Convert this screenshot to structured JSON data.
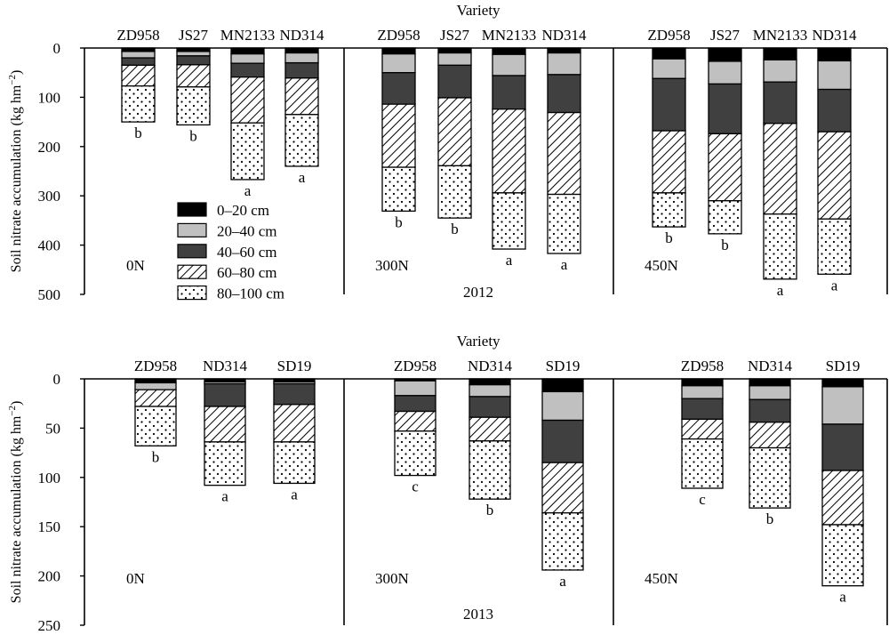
{
  "ylabel": "Soil nitrate accumulation (kg hm",
  "ylabel_sup": "−2",
  "ylabel_close": ")",
  "layers": [
    {
      "name": "0–20 cm",
      "color": "#000000",
      "fill": "solid"
    },
    {
      "name": "20–40 cm",
      "color": "#c0c0c0",
      "fill": "solid"
    },
    {
      "name": "40–60 cm",
      "color": "#404040",
      "fill": "solid"
    },
    {
      "name": "60–80 cm",
      "color": "#ffffff",
      "fill": "hatch"
    },
    {
      "name": "80–100 cm",
      "color": "#ffffff",
      "fill": "dots"
    }
  ],
  "chart_data": [
    {
      "type": "bar",
      "stacked": true,
      "orientation": "downward",
      "xlabel": "Variety",
      "year_label": "2012",
      "ylim": [
        0,
        500
      ],
      "yticks": [
        0,
        100,
        200,
        300,
        400,
        500
      ],
      "panels": [
        {
          "treatment": "0N",
          "categories": [
            "ZD958",
            "JS27",
            "MN2133",
            "ND314"
          ],
          "letters": [
            "b",
            "b",
            "a",
            "a"
          ],
          "bars": [
            [
              7,
              13,
              15,
              42,
              73
            ],
            [
              7,
              9,
              18,
              45,
              77
            ],
            [
              12,
              19,
              28,
              93,
              115
            ],
            [
              10,
              20,
              31,
              74,
              105
            ]
          ]
        },
        {
          "treatment": "300N",
          "categories": [
            "ZD958",
            "JS27",
            "MN2133",
            "ND314"
          ],
          "letters": [
            "b",
            "b",
            "a",
            "a"
          ],
          "bars": [
            [
              12,
              38,
              64,
              128,
              89
            ],
            [
              10,
              25,
              66,
              138,
              106
            ],
            [
              13,
              43,
              68,
              170,
              114
            ],
            [
              10,
              44,
              77,
              166,
              120
            ]
          ]
        },
        {
          "treatment": "450N",
          "categories": [
            "ZD958",
            "JS27",
            "MN2133",
            "ND314"
          ],
          "letters": [
            "b",
            "b",
            "a",
            "a"
          ],
          "bars": [
            [
              22,
              40,
              106,
              126,
              69
            ],
            [
              27,
              46,
              101,
              136,
              67
            ],
            [
              24,
              45,
              84,
              184,
              132
            ],
            [
              26,
              58,
              86,
              177,
              112
            ]
          ]
        }
      ]
    },
    {
      "type": "bar",
      "stacked": true,
      "orientation": "downward",
      "xlabel": "Variety",
      "year_label": "2013",
      "ylim": [
        0,
        250
      ],
      "yticks": [
        0,
        50,
        100,
        150,
        200,
        250
      ],
      "panels": [
        {
          "treatment": "0N",
          "categories": [
            "ZD958",
            "ND314",
            "SD19"
          ],
          "letters": [
            "b",
            "a",
            "a"
          ],
          "bars": [
            [
              4,
              7,
              0,
              17,
              40
            ],
            [
              3,
              2,
              23,
              36,
              44
            ],
            [
              3,
              2,
              21,
              38,
              42
            ]
          ]
        },
        {
          "treatment": "300N",
          "categories": [
            "ZD958",
            "ND314",
            "SD19"
          ],
          "letters": [
            "c",
            "b",
            "a"
          ],
          "bars": [
            [
              2,
              15,
              16,
              20,
              45
            ],
            [
              6,
              12,
              21,
              24,
              59
            ],
            [
              13,
              29,
              43,
              51,
              58
            ]
          ]
        },
        {
          "treatment": "450N",
          "categories": [
            "ZD958",
            "ND314",
            "SD19"
          ],
          "letters": [
            "c",
            "b",
            "a"
          ],
          "bars": [
            [
              7,
              13,
              21,
              20,
              50
            ],
            [
              7,
              14,
              23,
              26,
              61
            ],
            [
              8,
              38,
              47,
              55,
              62
            ]
          ]
        }
      ]
    }
  ]
}
